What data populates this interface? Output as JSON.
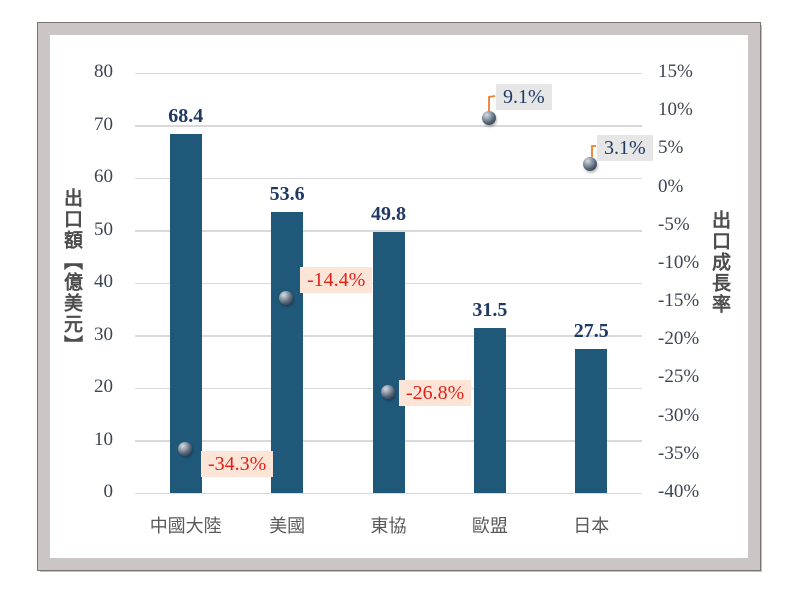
{
  "chart_data": {
    "type": "bar",
    "subtype": "combo-bar-scatter",
    "title": "",
    "categories": [
      "中國大陸",
      "美國",
      "東協",
      "歐盟",
      "日本"
    ],
    "series": [
      {
        "name": "出口額",
        "type": "bar",
        "values": [
          68.4,
          53.6,
          49.8,
          31.5,
          27.5
        ],
        "labels": [
          "68.4",
          "53.6",
          "49.8",
          "31.5",
          "27.5"
        ]
      },
      {
        "name": "出口成長率",
        "type": "scatter",
        "values": [
          -34.3,
          -14.4,
          -26.8,
          9.1,
          3.1
        ],
        "labels": [
          "-34.3%",
          "-14.4%",
          "-26.8%",
          "9.1%",
          "3.1%"
        ]
      }
    ],
    "left_axis": {
      "title": "出口額【億美元】",
      "min": 0,
      "max": 80,
      "ticks": [
        "80",
        "70",
        "60",
        "50",
        "40",
        "30",
        "20",
        "10",
        "0"
      ]
    },
    "right_axis": {
      "title": "出口成長率",
      "min": -40,
      "max": 15,
      "ticks": [
        "15%",
        "10%",
        "5%",
        "0%",
        "-5%",
        "-10%",
        "-15%",
        "-20%",
        "-25%",
        "-30%",
        "-35%",
        "-40%"
      ]
    },
    "grid": true,
    "legend": "none",
    "colors": {
      "bar": "#20587a",
      "bar_label": "#1f3864",
      "gridline": "#d9d9d9",
      "tick": "#3d4453",
      "category": "#595959",
      "axis_title": "#4d4d4d",
      "leader": "#ed7d31",
      "negative_text": "#e32119",
      "negative_bg": "#fce4d6",
      "positive_text": "#1f3864",
      "positive_bg": "#e7e6e6"
    }
  }
}
